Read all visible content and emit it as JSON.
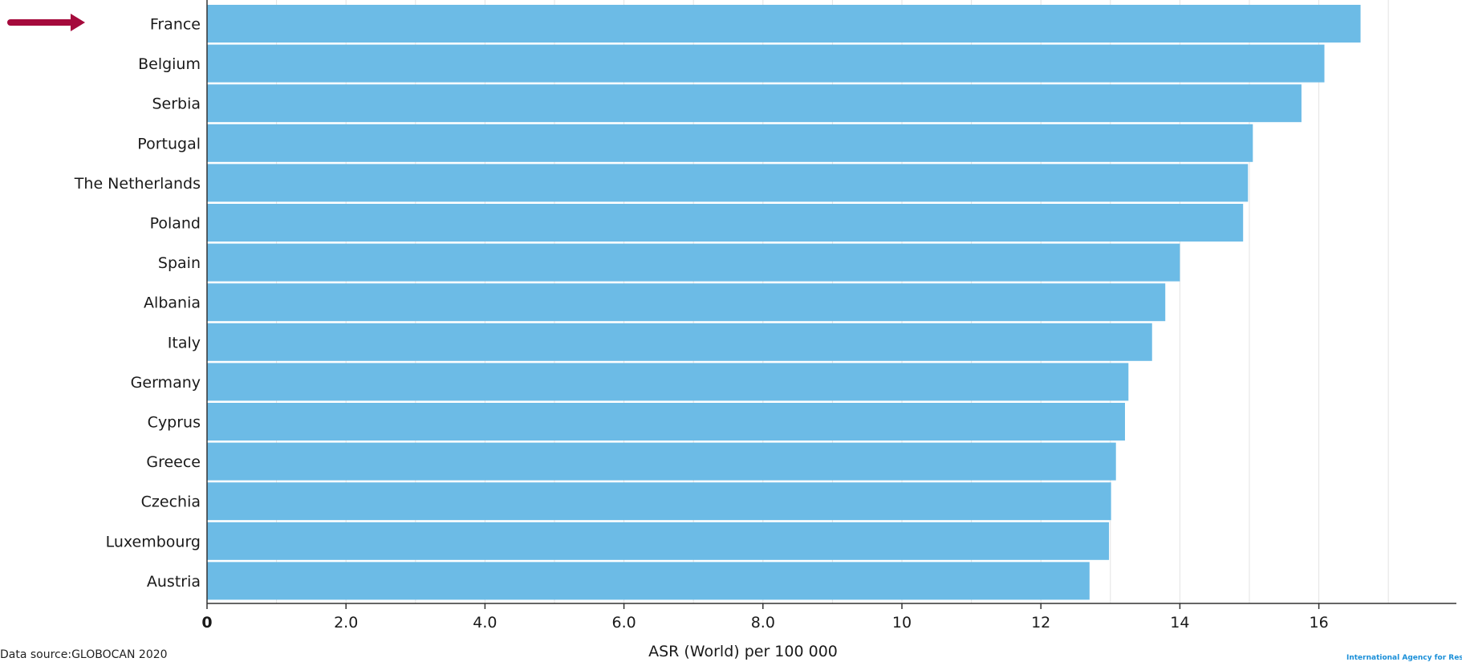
{
  "chart_data": {
    "type": "bar",
    "orientation": "horizontal",
    "categories": [
      "France",
      "Belgium",
      "Serbia",
      "Portugal",
      "The Netherlands",
      "Poland",
      "Spain",
      "Albania",
      "Italy",
      "Germany",
      "Cyprus",
      "Greece",
      "Czechia",
      "Luxembourg",
      "Austria"
    ],
    "values": [
      16.6,
      16.08,
      15.75,
      15.05,
      14.98,
      14.91,
      14.0,
      13.79,
      13.6,
      13.26,
      13.21,
      13.08,
      13.01,
      12.98,
      12.7
    ],
    "highlighted_category": "France",
    "xlabel": "ASR (World) per 100 000",
    "xlim": [
      0,
      18
    ],
    "xticks": [
      0,
      2,
      4,
      6,
      8,
      10,
      12,
      14,
      16
    ],
    "xtick_labels": [
      "0",
      "2.0",
      "4.0",
      "6.0",
      "8.0",
      "10",
      "12",
      "14",
      "16"
    ],
    "grid": true,
    "bar_color": "#6cbbe6",
    "highlight_marker_color": "#a50a3c"
  },
  "source_text": "Data source:GLOBOCAN 2020",
  "logo_text": "International Agency for Research on Cancer"
}
